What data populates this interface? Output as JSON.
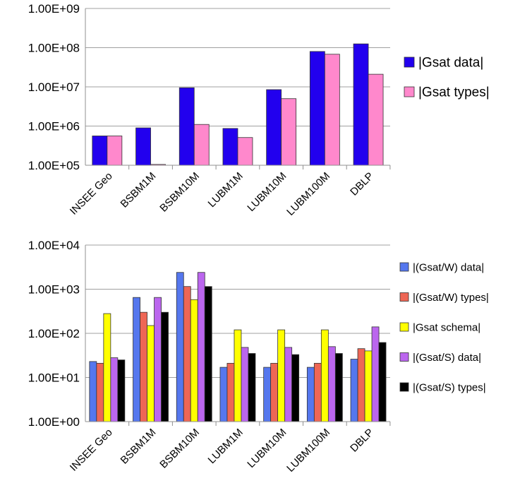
{
  "chart_data": [
    {
      "type": "bar",
      "scale": "log",
      "ylim": [
        100000,
        1000000000
      ],
      "yticks": [
        "1.00E+05",
        "1.00E+06",
        "1.00E+07",
        "1.00E+08",
        "1.00E+09"
      ],
      "categories": [
        "INSEE Geo",
        "BSBM1M",
        "BSBM10M",
        "LUBM1M",
        "LUBM10M",
        "LUBM100M",
        "DBLP"
      ],
      "grid": true,
      "legend_position": "right",
      "series": [
        {
          "name": "|Gsat data|",
          "color": "#2200ee",
          "values": [
            560000,
            900000,
            9500000,
            870000,
            8500000,
            80000000,
            125000000
          ]
        },
        {
          "name": "|Gsat types|",
          "color": "#ff88cc",
          "values": [
            560000,
            105000,
            1100000,
            510000,
            5000000,
            68000000,
            21000000
          ]
        }
      ]
    },
    {
      "type": "bar",
      "scale": "log",
      "ylim": [
        1,
        10000
      ],
      "yticks": [
        "1.00E+00",
        "1.00E+01",
        "1.00E+02",
        "1.00E+03",
        "1.00E+04"
      ],
      "categories": [
        "INSEE Geo",
        "BSBM1M",
        "BSBM10M",
        "LUBM1M",
        "LUBM10M",
        "LUBM100M",
        "DBLP"
      ],
      "grid": true,
      "legend_position": "right",
      "series": [
        {
          "name": "|(Gsat/W) data|",
          "color": "#5577ee",
          "values": [
            23,
            650,
            2400,
            17,
            17,
            17,
            26
          ]
        },
        {
          "name": "|(Gsat/W) types|",
          "color": "#ee6655",
          "values": [
            21,
            300,
            1150,
            21,
            21,
            21,
            45
          ]
        },
        {
          "name": "|Gsat schema|",
          "color": "#ffff00",
          "values": [
            280,
            150,
            580,
            120,
            120,
            120,
            40
          ]
        },
        {
          "name": "|(Gsat/S) data|",
          "color": "#bb66ee",
          "values": [
            28,
            650,
            2400,
            48,
            48,
            50,
            140
          ]
        },
        {
          "name": "|(Gsat/S) types|",
          "color": "#000000",
          "values": [
            25,
            300,
            1150,
            35,
            33,
            35,
            62
          ]
        }
      ]
    }
  ]
}
